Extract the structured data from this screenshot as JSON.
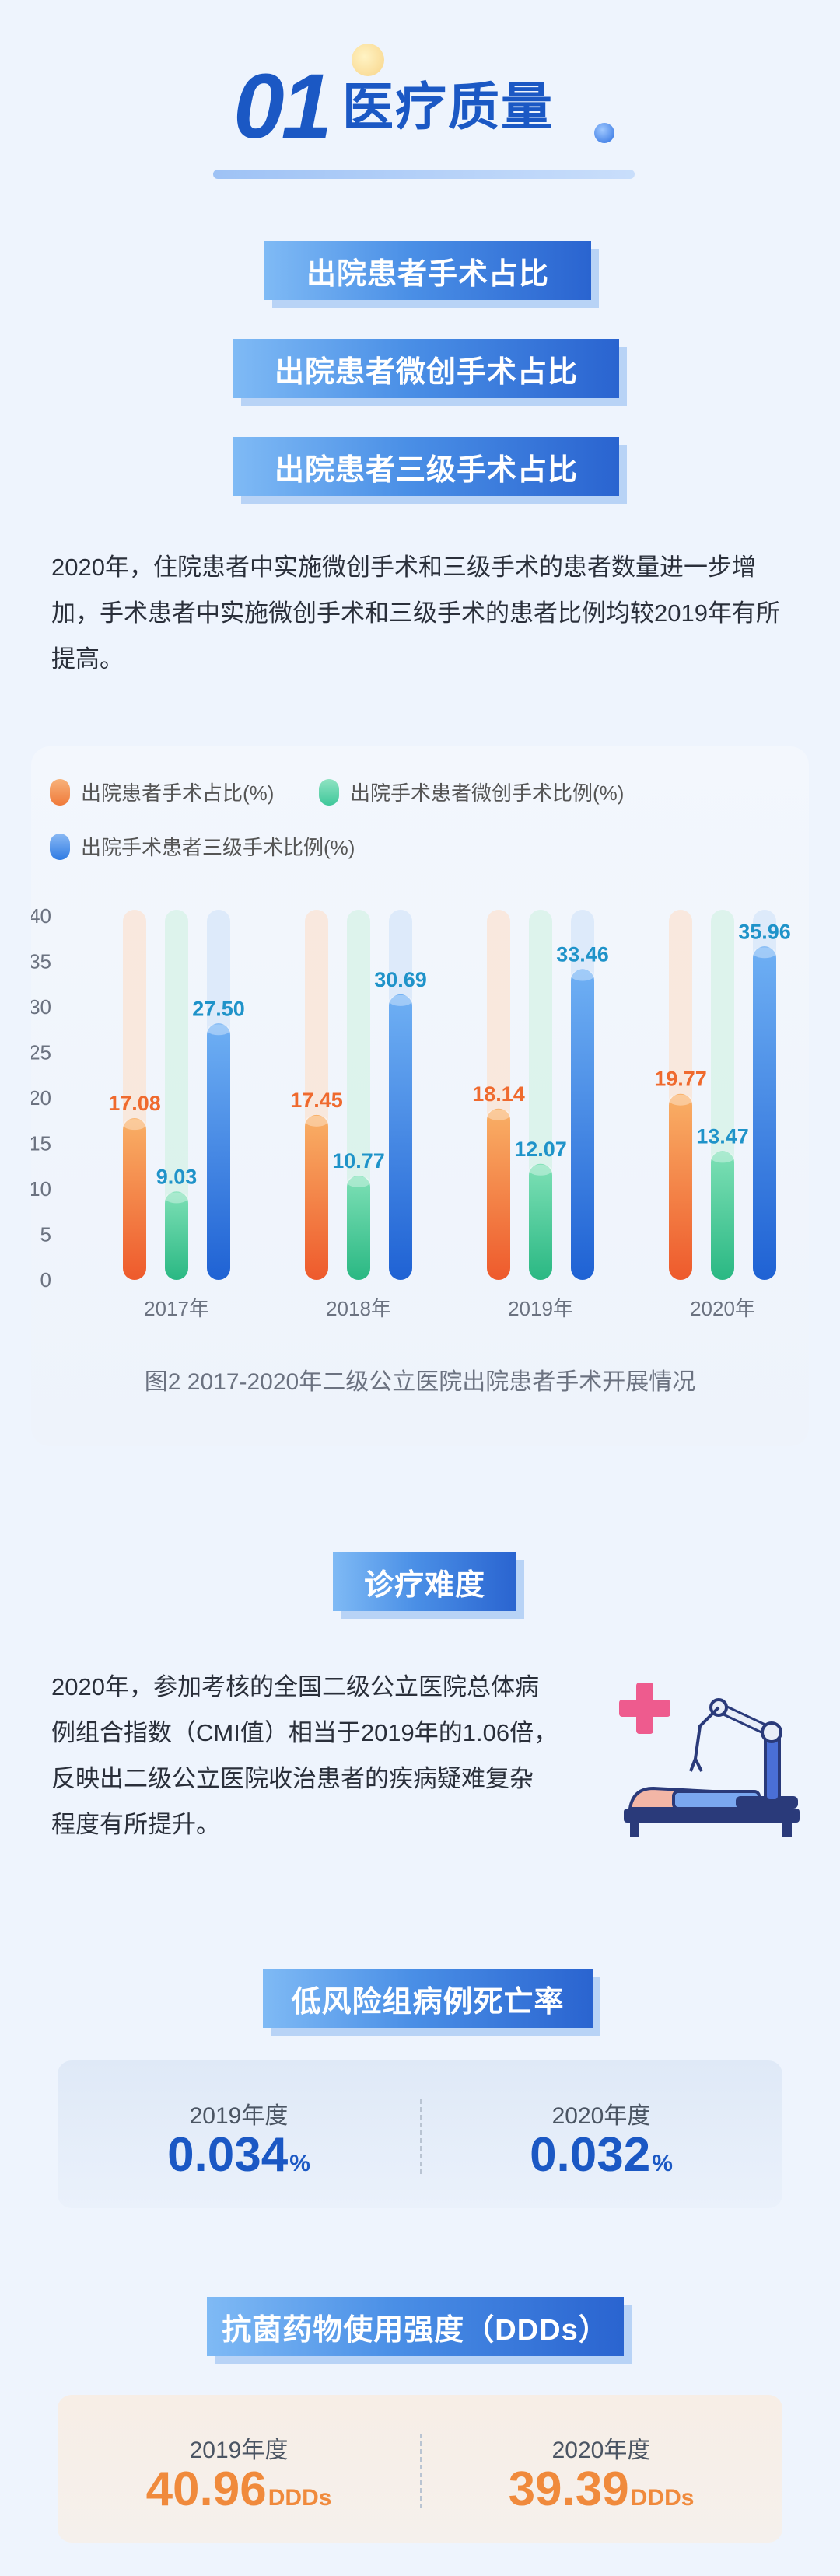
{
  "header": {
    "number": "01",
    "title": "医疗质量"
  },
  "ribbons": {
    "surgery_ratio": "出院患者手术占比",
    "minimally_invasive_ratio": "出院患者微创手术占比",
    "grade3_ratio": "出院患者三级手术占比"
  },
  "surgery_paragraph": [
    "2020年，住院患者中实施微创手术和三级手术的患者数量进一步增",
    "加，手术患者中实施微创手术和三级手术的患者比例均较2019年有所",
    "提高。"
  ],
  "chart_data": {
    "type": "bar",
    "categories": [
      "2017年",
      "2018年",
      "2019年",
      "2020年"
    ],
    "series": [
      {
        "name": "出院患者手术占比(%)",
        "values": [
          17.08,
          17.45,
          18.14,
          19.77
        ],
        "color": "#f07a3a"
      },
      {
        "name": "出院手术患者微创手术比例(%)",
        "values": [
          9.03,
          10.77,
          12.07,
          13.47
        ],
        "color": "#3ec79a"
      },
      {
        "name": "出院手术患者三级手术比例(%)",
        "values": [
          27.5,
          30.69,
          33.46,
          35.96
        ],
        "color": "#2f7be3"
      }
    ],
    "data_labels": [
      [
        "17.08",
        "17.45",
        "18.14",
        "19.77"
      ],
      [
        "9.03",
        "10.77",
        "12.07",
        "13.47"
      ],
      [
        "27.50",
        "30.69",
        "33.46",
        "35.96"
      ]
    ],
    "y_ticks": [
      "0",
      "5",
      "10",
      "15",
      "20",
      "25",
      "30",
      "35",
      "40"
    ],
    "ylim": [
      0,
      40
    ],
    "title": "",
    "xlabel": "",
    "ylabel": "",
    "legend_position": "top-left",
    "grid": false,
    "caption": "图2  2017-2020年二级公立医院出院患者手术开展情况"
  },
  "difficulty": {
    "ribbon": "诊疗难度",
    "paragraph": [
      "2020年，参加考核的全国二级公立医院总体病",
      "例组合指数（CMI值）相当于2019年的1.06倍，",
      "反映出二级公立医院收治患者的疾病疑难复杂",
      "程度有所提升。"
    ]
  },
  "mortality": {
    "ribbon": "低风险组病例死亡率",
    "items": [
      {
        "label": "2019年度",
        "value": "0.034",
        "unit": "%"
      },
      {
        "label": "2020年度",
        "value": "0.032",
        "unit": "%"
      }
    ]
  },
  "antibiotics": {
    "ribbon": "抗菌药物使用强度（DDDs）",
    "items": [
      {
        "label": "2019年度",
        "value": "40.96",
        "unit": "DDDs"
      },
      {
        "label": "2020年度",
        "value": "39.39",
        "unit": "DDDs"
      }
    ]
  },
  "colors": {
    "primary_blue": "#1b58c4",
    "accent_orange": "#f08a3c",
    "accent_green": "#3ec79a"
  }
}
